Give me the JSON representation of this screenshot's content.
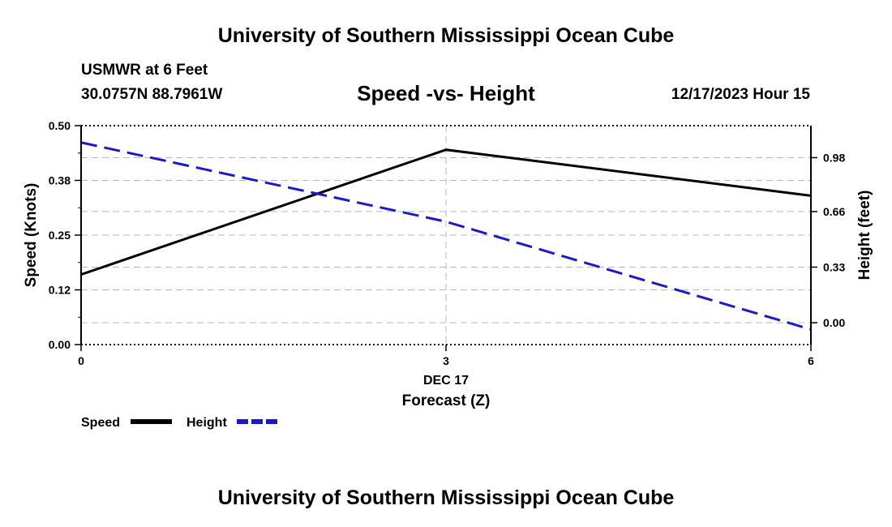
{
  "header": {
    "title": "University of Southern Mississippi Ocean Cube",
    "station": "USMWR at 6 Feet",
    "coords": "30.0757N  88.7961W",
    "datetime": "12/17/2023 Hour 15"
  },
  "footer": {
    "title": "University of Southern Mississippi Ocean Cube"
  },
  "legend": {
    "speed_label": "Speed",
    "height_label": "Height"
  },
  "colors": {
    "speed": "#000000",
    "height": "#1a1acc",
    "grid": "#b8b8b8"
  },
  "chart_data": {
    "type": "line",
    "title": "Speed -vs- Height",
    "xlabel": "Forecast (Z)",
    "xdate": "DEC 17",
    "ylabel": "Speed (Knots)",
    "y2label": "Height (feet)",
    "x": [
      0,
      3,
      6
    ],
    "x_ticks": [
      "0",
      "3",
      "6"
    ],
    "xlim": [
      0,
      6
    ],
    "ylim": [
      0,
      0.5
    ],
    "y_ticks": [
      "0.00",
      "0.12",
      "0.25",
      "0.38",
      "0.50"
    ],
    "y_tick_values": [
      0,
      0.125,
      0.25,
      0.375,
      0.5
    ],
    "y2lim": [
      -0.13,
      1.17
    ],
    "y2_ticks": [
      "0.00",
      "0.33",
      "0.66",
      "0.98"
    ],
    "y2_tick_values": [
      0,
      0.33,
      0.66,
      0.98
    ],
    "series": [
      {
        "name": "Speed",
        "axis": "left",
        "style": "solid",
        "values": [
          0.16,
          0.445,
          0.34
        ]
      },
      {
        "name": "Height",
        "axis": "right",
        "style": "dashed",
        "values": [
          1.07,
          0.6,
          -0.04
        ]
      }
    ]
  }
}
